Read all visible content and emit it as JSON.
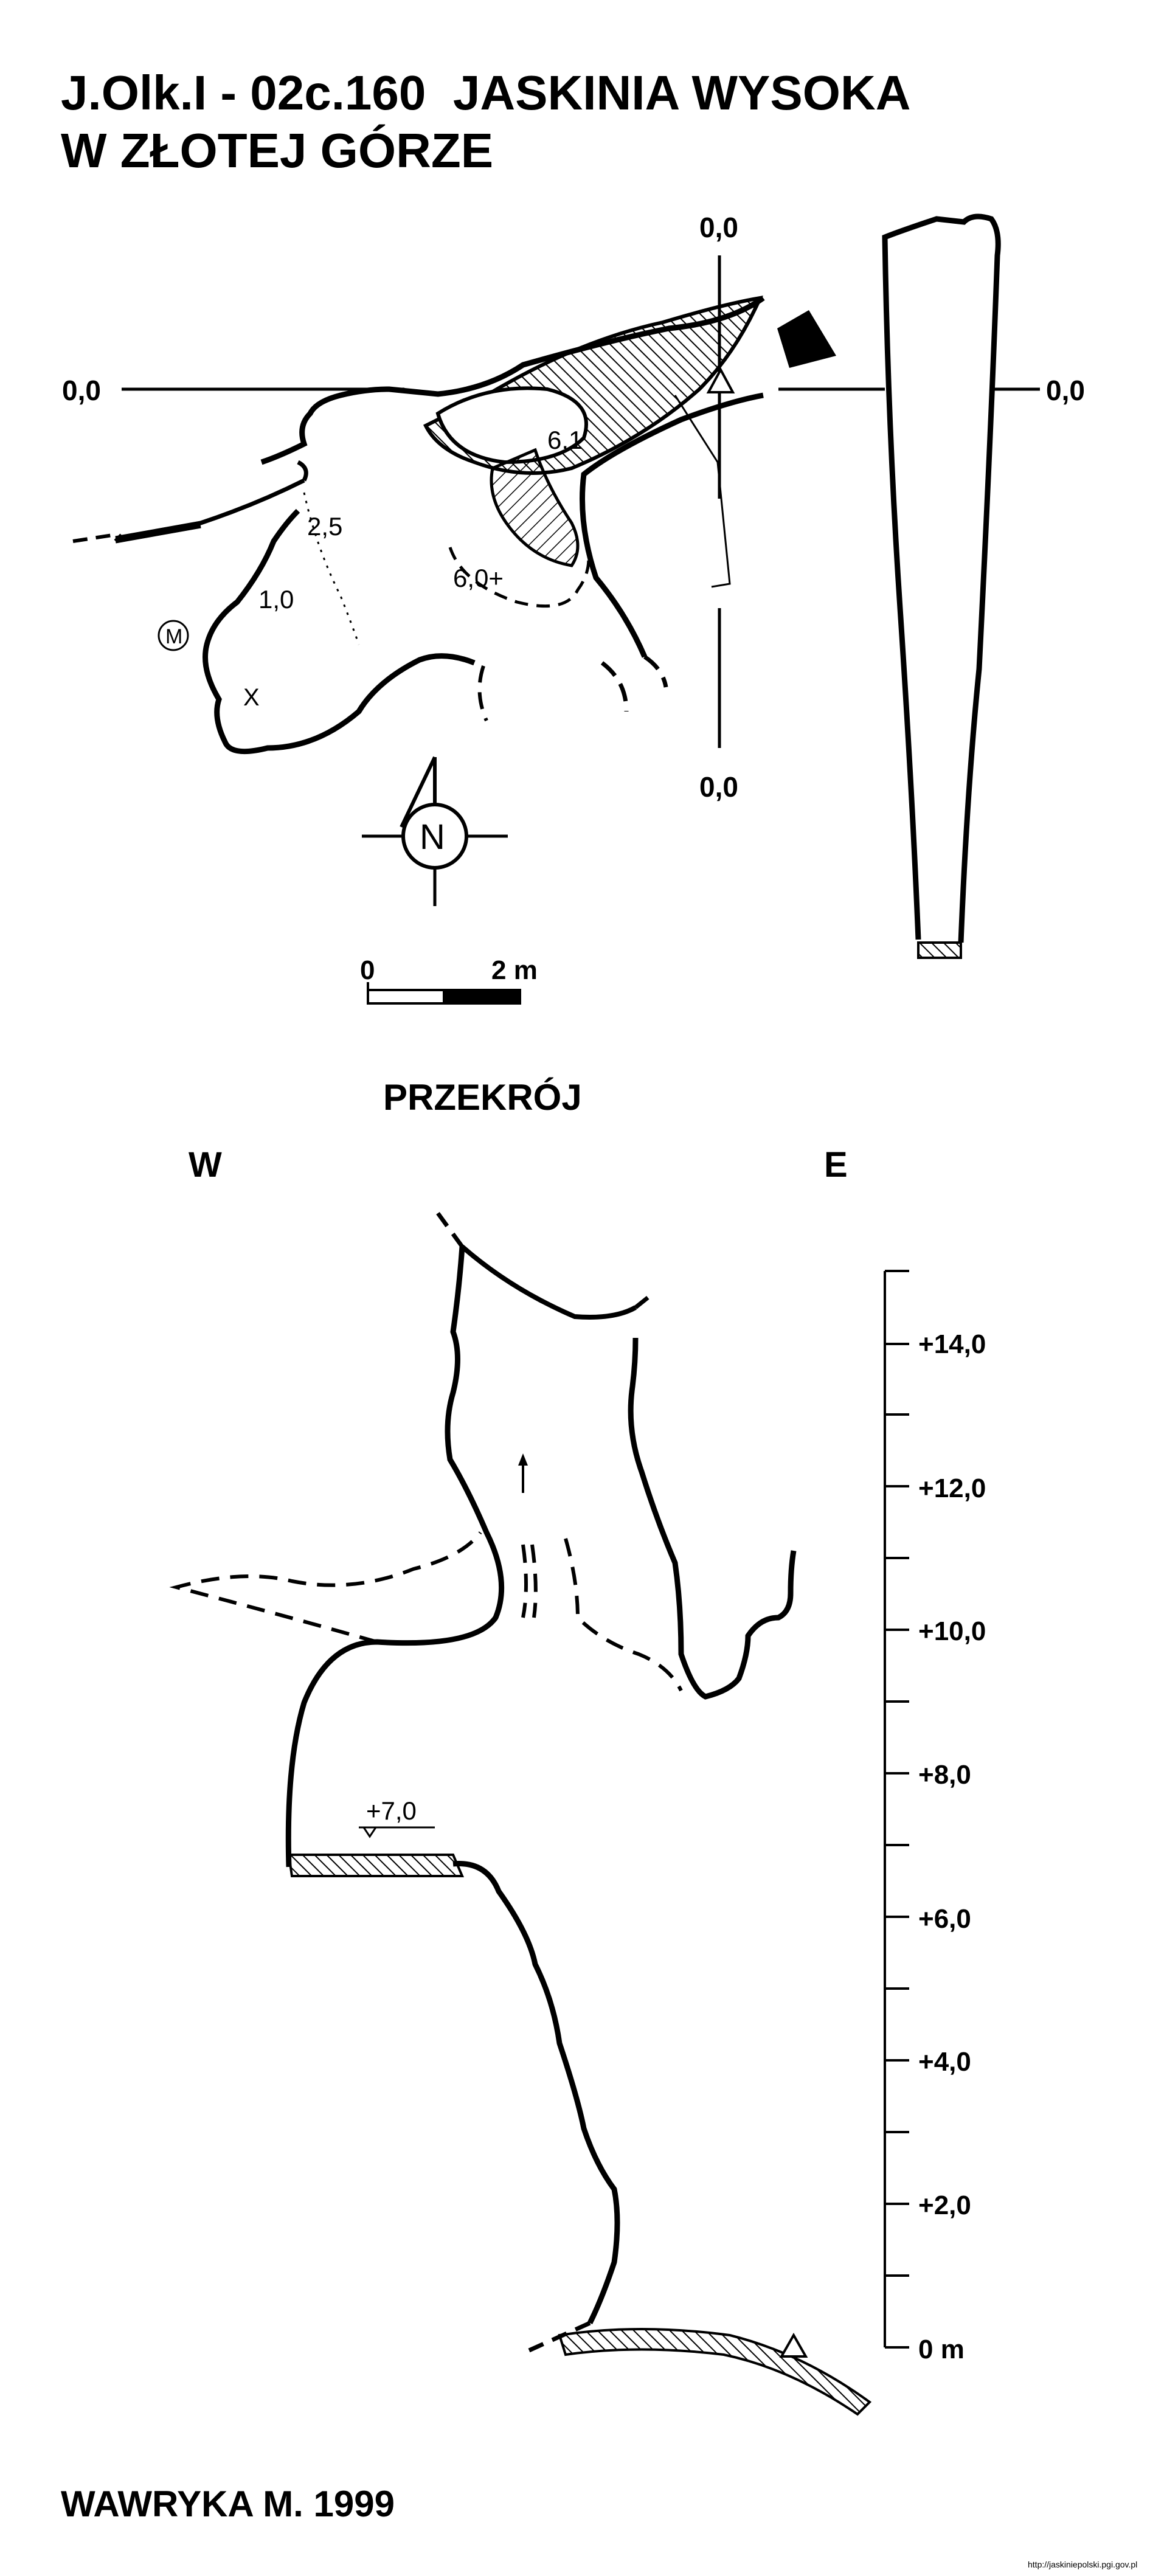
{
  "title": {
    "line1": "J.Olk.I - 02c.160  JASKINIA WYSOKA",
    "line2": "W ZŁOTEJ GÓRZE"
  },
  "plan": {
    "datum_labels": {
      "top": "0,0",
      "left": "0,0",
      "right": "0,0",
      "bottom": "0,0"
    },
    "depth_labels": {
      "d61": "6,1",
      "d25": "2,5",
      "d10": "1,0",
      "d60": "6,0+"
    },
    "symbols": {
      "marker_m": "M",
      "marker_x": "X"
    },
    "north": "N",
    "scale": {
      "start": "0",
      "end": "2 m"
    }
  },
  "section": {
    "title": "PRZEKRÓJ",
    "west": "W",
    "east": "E",
    "level_mark": "+7,0",
    "axis_labels": [
      "+14,0",
      "+12,0",
      "+10,0",
      "+8,0",
      "+6,0",
      "+4,0",
      "+2,0",
      "0 m"
    ]
  },
  "author": "WAWRYKA M. 1999",
  "source": "http://jaskiniepolski.pgi.gov.pl",
  "colors": {
    "ink": "#000000",
    "paper": "#ffffff"
  }
}
